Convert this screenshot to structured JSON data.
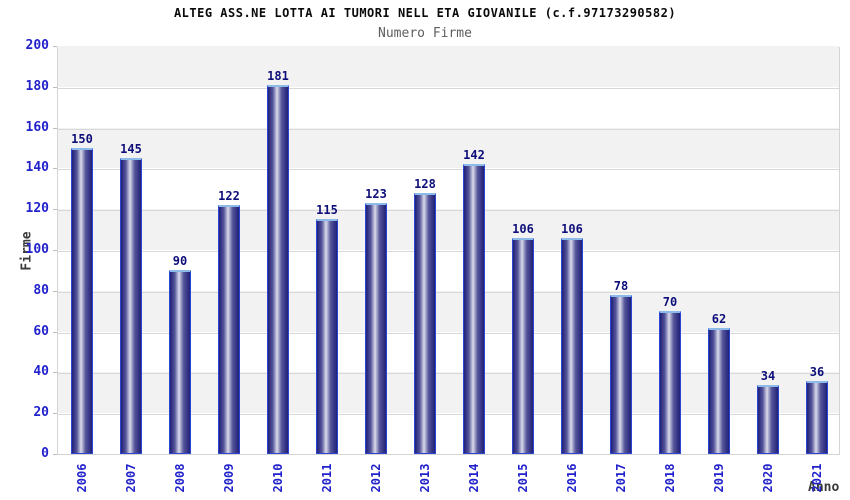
{
  "chart_data": {
    "type": "bar",
    "title": "ALTEG ASS.NE LOTTA AI TUMORI NELL ETA GIOVANILE (c.f.97173290582)",
    "subtitle": "Numero Firme",
    "xlabel": "Anno",
    "ylabel": "Firme",
    "categories": [
      "2006",
      "2007",
      "2008",
      "2009",
      "2010",
      "2011",
      "2012",
      "2013",
      "2014",
      "2015",
      "2016",
      "2017",
      "2018",
      "2019",
      "2020",
      "2021"
    ],
    "values": [
      150,
      145,
      90,
      122,
      181,
      115,
      123,
      128,
      142,
      106,
      106,
      78,
      70,
      62,
      34,
      36
    ],
    "ylim": [
      0,
      200
    ],
    "ytick_step": 20,
    "legend": "none",
    "grid": "horizontal-bands",
    "colors": {
      "tick_label": "#2222cc",
      "value_label": "#0e0e7a",
      "band_fill": "#f2f2f2",
      "gridline": "#d8d8d8",
      "tick_mark": "#bcbcbc",
      "bar_border": "#2c46d2",
      "bar_top_cap": "#8cbbea",
      "bar_edge_dark": "#202078",
      "bar_mid": "#55559a",
      "bar_light": "#dadaeb"
    }
  }
}
